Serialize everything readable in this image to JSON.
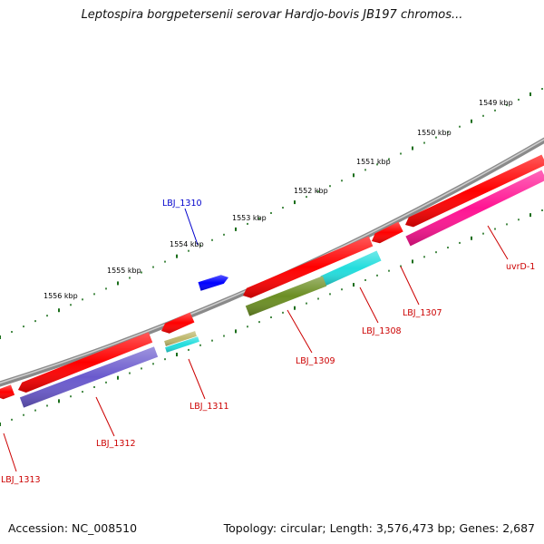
{
  "map": {
    "title": "Leptospira borgpetersenii serovar Hardjo-bovis JB197 chromos...",
    "tick_labels": [
      "1549 kbp",
      "1550 kbp",
      "1551 kbp",
      "1552 kbp",
      "1553 kbp",
      "1554 kbp",
      "1555 kbp",
      "1556 kbp"
    ],
    "gene_labels": [
      "LBJ_1310",
      "uvrD-1",
      "LBJ_1307",
      "LBJ_1308",
      "LBJ_1309",
      "LBJ_1311",
      "LBJ_1312",
      "LBJ_1313"
    ],
    "colors": {
      "backbone": "#8a8a8a",
      "tick": "#1a6e1a",
      "cds": "#ff0000",
      "plus_label": "#0000cc",
      "minus_label": "#cc0000",
      "cog_blue": "#0000ff",
      "cog_cyan": "#22dddd",
      "cog_olive": "#6b8e23",
      "cog_magenta": "#ff1493",
      "cog_slate": "#6a5acd",
      "cog_khaki": "#bdb76b"
    }
  },
  "footer": {
    "accession": "Accession: NC_008510",
    "stats": "Topology: circular; Length: 3,576,473 bp; Genes: 2,687"
  }
}
